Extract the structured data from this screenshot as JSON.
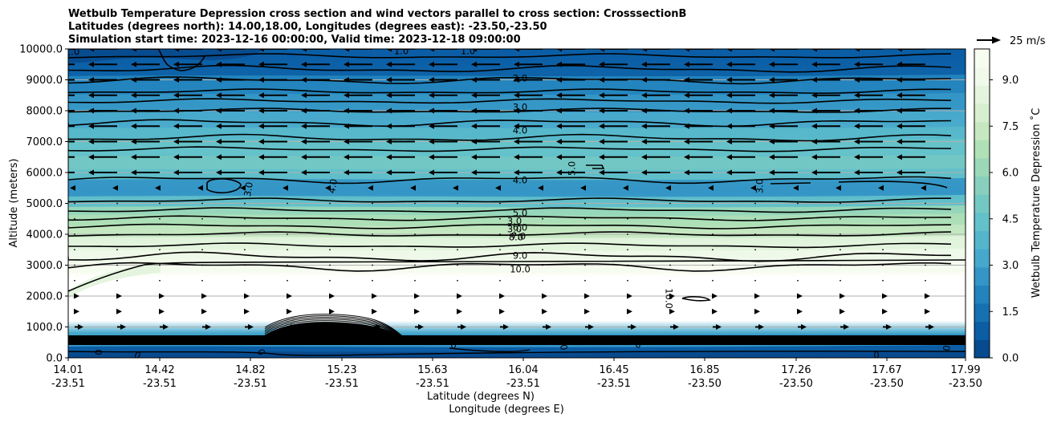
{
  "chart_data": {
    "type": "contourf",
    "title_lines": [
      "Wetbulb Temperature Depression cross section and wind vectors parallel to cross section: CrosssectionB",
      "Latitudes (degrees north): 14.00,18.00, Longitudes (degrees east): -23.50,-23.50",
      "Simulation start time: 2023-12-16 00:00:00, Valid time: 2023-12-18 09:00:00"
    ],
    "xlabel_lat": "Latitude (degrees N)",
    "xlabel_lon": "Longitude (degrees E)",
    "ylabel": "Altitude (meters)",
    "ylim": [
      0,
      10000
    ],
    "yticks": [
      "0.0",
      "1000.0",
      "2000.0",
      "3000.0",
      "4000.0",
      "5000.0",
      "6000.0",
      "7000.0",
      "8000.0",
      "9000.0",
      "10000.0"
    ],
    "xticks": [
      {
        "lat": "14.01",
        "lon": "-23.51"
      },
      {
        "lat": "14.42",
        "lon": "-23.51"
      },
      {
        "lat": "14.82",
        "lon": "-23.51"
      },
      {
        "lat": "15.23",
        "lon": "-23.51"
      },
      {
        "lat": "15.63",
        "lon": "-23.51"
      },
      {
        "lat": "16.04",
        "lon": "-23.51"
      },
      {
        "lat": "16.45",
        "lon": "-23.51"
      },
      {
        "lat": "16.85",
        "lon": "-23.50"
      },
      {
        "lat": "17.26",
        "lon": "-23.50"
      },
      {
        "lat": "17.67",
        "lon": "-23.50"
      },
      {
        "lat": "17.99",
        "lon": "-23.50"
      }
    ],
    "colorbar": {
      "label": "Wetbulb Temperature Depression ˚C",
      "range": [
        0,
        10
      ],
      "ticks": [
        "0.0",
        "1.5",
        "3.0",
        "4.5",
        "6.0",
        "7.5",
        "9.0"
      ],
      "tick_values": [
        0,
        1.5,
        3,
        4.5,
        6,
        7.5,
        9
      ],
      "colors": [
        "#084a8e",
        "#0b5da4",
        "#1571b1",
        "#2283bd",
        "#3495c6",
        "#46a8cc",
        "#55b6cb",
        "#63c1ca",
        "#74c8c3",
        "#88d0bd",
        "#9bd8b8",
        "#b0e0b6",
        "#c5e8c1",
        "#d6efcf",
        "#e4f4de",
        "#f0f9ea",
        "#f7fcf0"
      ]
    },
    "quiver_key": {
      "label": "25 m/s",
      "speed": 25
    },
    "contour_labels": [
      "1.0",
      "1.0",
      "1.0",
      "2.0",
      "3.0",
      "4.0",
      "5.0",
      "4.0",
      "3.0",
      "4.0",
      "3.0",
      "3.0",
      "5.0",
      "6.0",
      "7.0",
      "8.0",
      "9.0",
      "10.0",
      "10.0",
      "3.0",
      "0",
      "0",
      "0",
      "0",
      "0",
      "0",
      "0",
      "0",
      "0",
      "0"
    ]
  }
}
